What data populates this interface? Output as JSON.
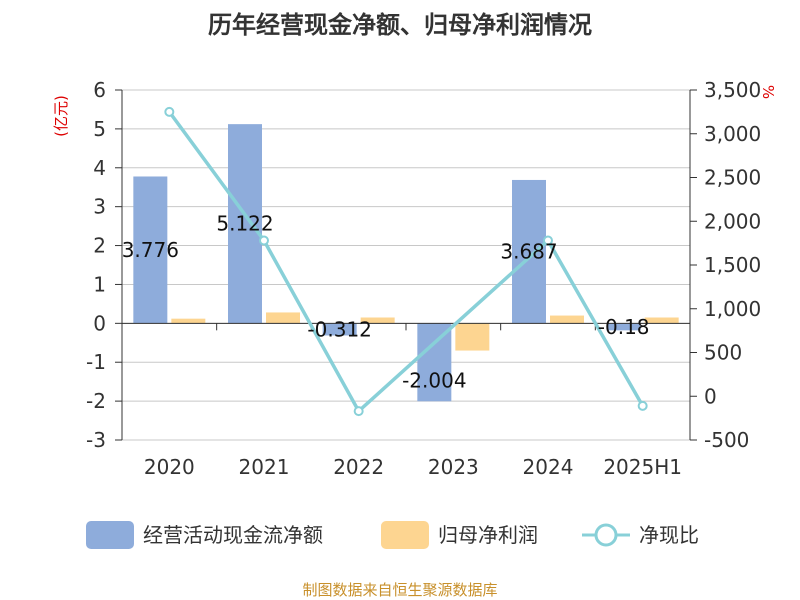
{
  "chart_data": {
    "type": "bar",
    "title": "历年经营现金净额、归母净利润情况",
    "categories": [
      "2020",
      "2021",
      "2022",
      "2023",
      "2024",
      "2025H1"
    ],
    "series": [
      {
        "name": "经营活动现金流净额",
        "type": "bar",
        "axis": "left",
        "color": "#8eacdb",
        "values": [
          3.776,
          5.122,
          -0.312,
          -2.004,
          3.687,
          -0.18
        ],
        "labels": [
          "3.776",
          "5.122",
          "-0.312",
          "-2.004",
          "3.687",
          "-0.18"
        ]
      },
      {
        "name": "归母净利润",
        "type": "bar",
        "axis": "left",
        "color": "#fdd591",
        "values": [
          0.12,
          0.28,
          0.15,
          -0.7,
          0.2,
          0.15
        ]
      },
      {
        "name": "净现比",
        "type": "line",
        "axis": "right",
        "color": "#88d0d8",
        "values": [
          3250,
          1780,
          -170,
          null,
          1780,
          -110
        ]
      }
    ],
    "y_left": {
      "unit": "(亿元)",
      "min": -3,
      "max": 6,
      "ticks": [
        -3,
        -2,
        -1,
        0,
        1,
        2,
        3,
        4,
        5,
        6
      ],
      "tick_labels": [
        "-3",
        "-2",
        "-1",
        "0",
        "1",
        "2",
        "3",
        "4",
        "5",
        "6"
      ]
    },
    "y_right": {
      "unit": "%",
      "min": -500,
      "max": 3500,
      "ticks": [
        -500,
        0,
        500,
        1000,
        1500,
        2000,
        2500,
        3000,
        3500
      ],
      "tick_labels": [
        "-500",
        "0",
        "500",
        "1,000",
        "1,500",
        "2,000",
        "2,500",
        "3,000",
        "3,500"
      ]
    },
    "grid": true,
    "legend_position": "bottom"
  },
  "source": "制图数据来自恒生聚源数据库"
}
